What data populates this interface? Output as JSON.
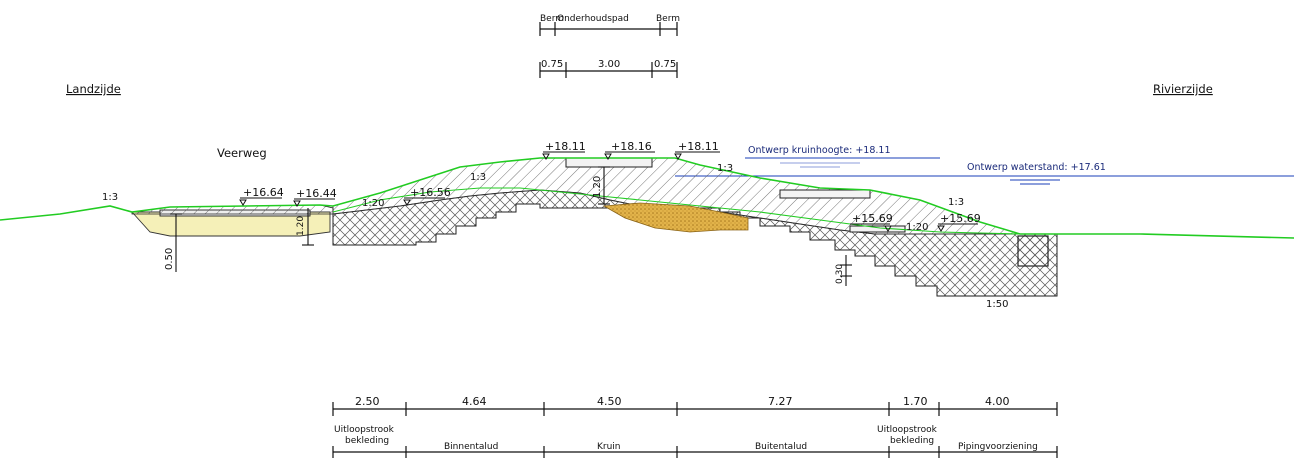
{
  "sides": {
    "land": "Landzijde",
    "river": "Rivierzijde"
  },
  "road_label": "Veerweg",
  "top_dims": {
    "labels": [
      "Berm",
      "Onderhoudspad",
      "Berm"
    ],
    "values": [
      "0.75",
      "3.00",
      "0.75"
    ]
  },
  "water": {
    "design_crest": "Ontwerp kruinhoogte: +18.11",
    "design_level": "Ontwerp waterstand: +17.61"
  },
  "levels": {
    "crest_left": "+18.11",
    "crest_mid": "+18.16",
    "crest_right": "+18.11",
    "inner_berm": "+16.56",
    "road_left": "+16.64",
    "road_right": "+16.44",
    "outer_berm_left": "+15.69",
    "outer_berm_right": "+15.69"
  },
  "slopes": {
    "land_far": "1:3",
    "inner_lower": "1:20",
    "inner_upper": "1:3",
    "outer_upper": "1:3",
    "outer_lower": "1:3",
    "outer_berm": "1:20",
    "base": "1:50"
  },
  "vertical_dims": {
    "road_depth": "0.50",
    "ditch_depth": "1.20",
    "crest_depth": "1.20",
    "outer_step": "0.30"
  },
  "bottom_dims": {
    "values": [
      "2.50",
      "4.64",
      "4.50",
      "7.27",
      "1.70",
      "4.00"
    ],
    "labels": [
      [
        "Uitloopstrook",
        "bekleding"
      ],
      [
        "Binnentalud"
      ],
      [
        "Kruin"
      ],
      [
        "Buitentalud"
      ],
      [
        "Uitloopstrook",
        "bekleding"
      ],
      [
        "Pipingvoorziening"
      ]
    ]
  },
  "colors": {
    "ground_line": "#22cc22",
    "water_line": "#1a3fb8",
    "sand": "#d9a53a",
    "road_fill": "#f5f0b8",
    "hatch": "#444444"
  }
}
